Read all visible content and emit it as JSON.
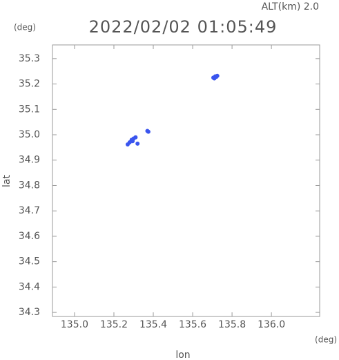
{
  "chart_data": {
    "type": "scatter",
    "header": "ALT(km) 2.0",
    "title": "2022/02/02 01:05:49",
    "y_unit": "(deg)",
    "x_unit": "(deg)",
    "xlabel": "lon",
    "ylabel": "lat",
    "xlim": [
      134.888,
      136.245
    ],
    "ylim": [
      34.284,
      35.354
    ],
    "xticks": [
      {
        "value": 135.0,
        "label": "135.0"
      },
      135.2,
      135.4,
      135.6,
      135.8,
      {
        "value": 136.0,
        "label": "136.0"
      }
    ],
    "yticks": [
      34.3,
      34.4,
      34.5,
      34.6,
      34.7,
      34.8,
      34.9,
      {
        "value": 35.0,
        "label": "35.0"
      },
      35.1,
      35.2,
      35.3
    ],
    "color": "#3a55ee",
    "x": [
      135.705,
      135.715,
      135.725,
      135.71,
      135.72,
      135.3,
      135.29,
      135.31,
      135.295,
      135.28,
      135.27,
      135.32,
      135.375,
      135.37
    ],
    "y": [
      35.225,
      35.23,
      35.232,
      35.222,
      35.228,
      34.985,
      34.98,
      34.99,
      34.975,
      34.97,
      34.962,
      34.965,
      35.012,
      35.015
    ]
  }
}
